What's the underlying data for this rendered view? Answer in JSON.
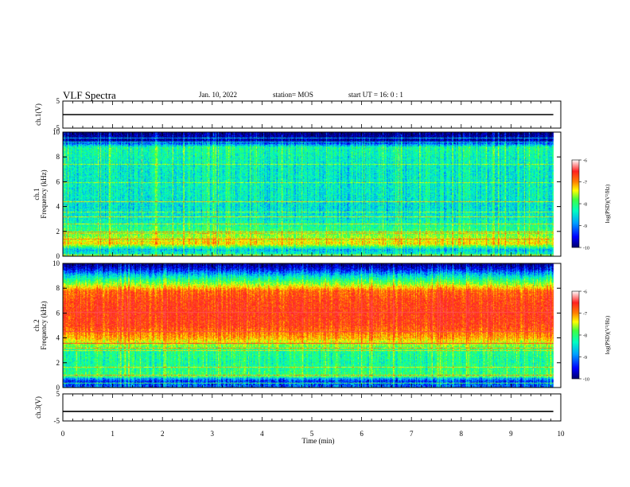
{
  "header": {
    "title": "VLF Spectra",
    "date": "Jan. 10, 2022",
    "station": "station= MOS",
    "start": "start  UT  =   16: 0  : 1"
  },
  "colors": {
    "spectrogram_colormap": [
      "#00006a",
      "#0000ff",
      "#00a0ff",
      "#00ffc0",
      "#40ff40",
      "#ffff00",
      "#ff8000",
      "#ff2020",
      "#ff5050"
    ],
    "waveform": "#000000"
  },
  "chart_data": [
    {
      "type": "line",
      "panel": "ch1-waveform",
      "ylabel": "ch.1(V)",
      "ylim": [
        -5,
        5
      ],
      "yticks": [
        "5",
        "-5"
      ],
      "series": [
        {
          "x": [
            0,
            9.85
          ],
          "y": [
            0,
            0
          ]
        }
      ]
    },
    {
      "type": "heatmap",
      "panel": "ch1-spectrogram",
      "ylabel_line1": "ch.1",
      "ylabel_line2": "Frequency (kHz)",
      "ylim": [
        0,
        10
      ],
      "yticks": [
        "0",
        "2",
        "4",
        "6",
        "8",
        "10"
      ],
      "colorbar": {
        "label": "log(PSD)(V²/Hz)",
        "range": [
          -10,
          -6
        ],
        "ticks": [
          "-6",
          "-7",
          "-8",
          "-9",
          "-10"
        ]
      },
      "intensity_profile": {
        "freq_khz": [
          0,
          0.5,
          1,
          2,
          3,
          4,
          5,
          6,
          7,
          8,
          8.8,
          9.3,
          10
        ],
        "log_psd": [
          -8.4,
          -8.9,
          -7.4,
          -8.2,
          -8.6,
          -8.7,
          -8.6,
          -8.6,
          -8.6,
          -8.5,
          -8.4,
          -9.8,
          -10
        ]
      }
    },
    {
      "type": "heatmap",
      "panel": "ch2-spectrogram",
      "ylabel_line1": "ch.2",
      "ylabel_line2": "Frequency (kHz)",
      "ylim": [
        0,
        10
      ],
      "yticks": [
        "0",
        "2",
        "4",
        "6",
        "8",
        "10"
      ],
      "colorbar": {
        "label": "log(PSD)(V²/Hz)",
        "range": [
          -10,
          -6
        ],
        "ticks": [
          "-6",
          "-7",
          "-8",
          "-9",
          "-10"
        ]
      },
      "intensity_profile": {
        "freq_khz": [
          0,
          0.5,
          1,
          2,
          3,
          4,
          5,
          6,
          7,
          7.8,
          8.4,
          9,
          9.6,
          10
        ],
        "log_psd": [
          -9.2,
          -9.4,
          -8.2,
          -8.4,
          -8.3,
          -7.2,
          -6.7,
          -6.6,
          -6.7,
          -6.9,
          -7.9,
          -8.7,
          -9.6,
          -10
        ]
      }
    },
    {
      "type": "line",
      "panel": "ch3-waveform",
      "ylabel": "ch.3(V)",
      "ylim": [
        -5,
        5
      ],
      "yticks": [
        "5",
        "-5"
      ],
      "series": [
        {
          "x": [
            0,
            9.85
          ],
          "y": [
            -1.5,
            -1.5
          ]
        }
      ]
    }
  ],
  "x_axis": {
    "label": "Time  (min)",
    "xlim": [
      0,
      10
    ],
    "data_end_min": 9.85,
    "ticks": [
      "0",
      "1",
      "2",
      "3",
      "4",
      "5",
      "6",
      "7",
      "8",
      "9",
      "10"
    ]
  }
}
